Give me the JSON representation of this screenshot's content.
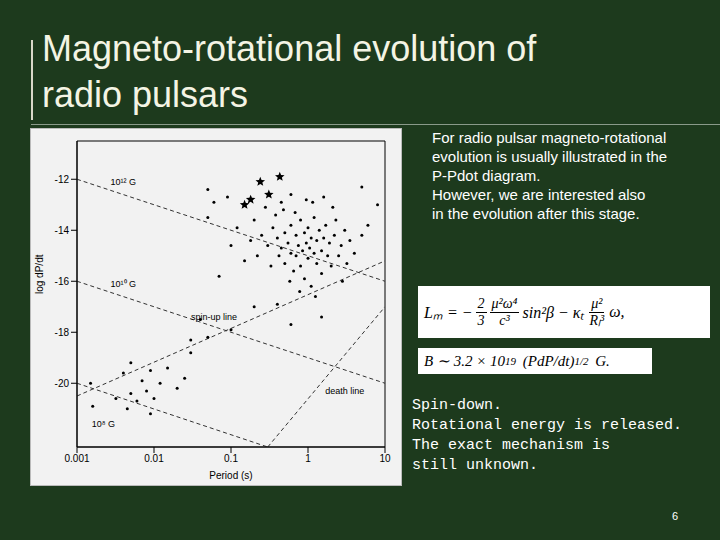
{
  "slide": {
    "title": [
      "Magneto-rotational evolution of",
      "radio pulsars"
    ],
    "intro": [
      "For radio pulsar magneto-rotational",
      "evolution is usually illustrated in the",
      "P-Pdot diagram.",
      "However, we are interested also",
      "in the evolution after this stage."
    ],
    "formula_1": [
      {
        "text": "Lₘ = −"
      },
      {
        "frac": [
          "2",
          "3"
        ]
      },
      {
        "frac": [
          "μ²ω⁴",
          "c³"
        ]
      },
      {
        "text": "sin²β − κₜ"
      },
      {
        "frac": [
          "μ²",
          "Rₗ³"
        ]
      },
      {
        "text": "ω,"
      }
    ],
    "formula_2": [
      {
        "text": "B ∼ 3.2 × 10"
      },
      {
        "sup": "19"
      },
      {
        "text": " (PdP/dt)"
      },
      {
        "sup": "1/2"
      },
      {
        "text": " G."
      }
    ],
    "note": [
      "Spin-down.",
      "Rotational energy is released.",
      "The exact mechanism is",
      "still unknown."
    ],
    "page": "6"
  },
  "chart_data": {
    "type": "scatter",
    "x_label": "Period (s)",
    "y_label": "log dP/dt",
    "log": "x",
    "grid": false,
    "xlim": [
      0.001,
      10
    ],
    "xticks": [
      0.001,
      0.01,
      0.1,
      1,
      10
    ],
    "ylim": [
      -22.5,
      -10.5
    ],
    "yticks": [
      -20,
      -18,
      -16,
      -14,
      -12
    ],
    "series": [
      {
        "marker": "circle",
        "color": "#000000",
        "x": [
          0.25,
          0.3,
          0.35,
          0.4,
          0.42,
          0.45,
          0.5,
          0.5,
          0.55,
          0.6,
          0.6,
          0.65,
          0.7,
          0.7,
          0.75,
          0.8,
          0.8,
          0.85,
          0.9,
          0.9,
          0.95,
          1.0,
          1.0,
          1.05,
          1.1,
          1.1,
          1.2,
          1.2,
          1.3,
          1.3,
          1.4,
          1.5,
          1.5,
          1.6,
          1.7,
          1.8,
          1.9,
          2.0,
          2.2,
          2.3,
          2.5,
          2.7,
          3.0,
          3.2,
          3.5,
          4.0,
          0.33,
          0.38,
          0.48,
          0.58,
          0.68,
          0.78,
          1.15,
          0.28,
          0.22,
          0.2,
          0.18,
          2.8,
          5.0,
          6.0,
          1.25,
          0.95,
          0.6,
          0.45,
          1.6,
          2.1,
          0.12,
          0.15,
          0.1,
          0.05,
          0.09,
          0.03,
          0.2,
          0.4,
          1.5,
          0.6,
          0.07,
          0.04,
          5.0,
          8.0,
          0.05,
          0.06,
          0.0015,
          0.0016,
          0.0032,
          0.004,
          0.005,
          0.005,
          0.006,
          0.007,
          0.008,
          0.009,
          0.01,
          0.012,
          0.015,
          0.02,
          0.025,
          0.03,
          0.0045,
          0.009,
          0.05,
          0.1
        ],
        "y": [
          -14.2,
          -14.6,
          -13.9,
          -14.3,
          -15.0,
          -14.7,
          -14.1,
          -15.3,
          -14.5,
          -13.8,
          -14.9,
          -15.6,
          -14.2,
          -15.0,
          -14.6,
          -13.6,
          -15.4,
          -14.8,
          -14.1,
          -15.9,
          -14.5,
          -13.9,
          -15.1,
          -14.7,
          -14.3,
          -16.2,
          -14.9,
          -13.5,
          -15.3,
          -14.4,
          -14.0,
          -14.8,
          -15.7,
          -14.3,
          -13.8,
          -15.0,
          -14.5,
          -15.4,
          -14.2,
          -13.6,
          -15.0,
          -14.6,
          -14.0,
          -15.3,
          -14.4,
          -14.9,
          -15.4,
          -13.4,
          -13.2,
          -16.0,
          -13.3,
          -16.4,
          -12.9,
          -13.1,
          -15.0,
          -13.6,
          -14.4,
          -16.0,
          -14.2,
          -13.8,
          -16.6,
          -12.8,
          -12.6,
          -12.9,
          -12.7,
          -13.1,
          -13.9,
          -15.2,
          -14.6,
          -13.5,
          -12.7,
          -18.3,
          -17.0,
          -16.9,
          -17.4,
          -17.7,
          -15.8,
          -17.5,
          -12.3,
          -13.0,
          -12.4,
          -12.9,
          -20.0,
          -20.9,
          -20.6,
          -19.6,
          -19.2,
          -20.4,
          -20.7,
          -19.9,
          -20.3,
          -19.5,
          -20.6,
          -20.0,
          -19.4,
          -20.2,
          -19.8,
          -18.8,
          -21.0,
          -21.2,
          -18.2,
          -17.9
        ]
      },
      {
        "marker": "star",
        "color": "#000000",
        "x": [
          0.15,
          0.24,
          0.31,
          0.18,
          0.43
        ],
        "y": [
          -13.0,
          -12.1,
          -12.6,
          -12.8,
          -11.9
        ]
      }
    ],
    "lines": [
      {
        "color": "#333333",
        "line_style": "dashed",
        "x": [
          0.001,
          10
        ],
        "y": [
          -12,
          -16
        ]
      },
      {
        "color": "#333333",
        "line_style": "dashed",
        "x": [
          0.001,
          10
        ],
        "y": [
          -16,
          -20
        ]
      },
      {
        "color": "#333333",
        "line_style": "dashed",
        "x": [
          0.001,
          0.3
        ],
        "y": [
          -20,
          -22.5
        ]
      },
      {
        "color": "#333333",
        "line_style": "dashed",
        "x": [
          0.3,
          10
        ],
        "y": [
          -22.5,
          -17
        ]
      },
      {
        "color": "#333333",
        "line_style": "dashed",
        "x": [
          0.001,
          10
        ],
        "y": [
          -20.5,
          -15.2
        ]
      }
    ],
    "annotations": [
      {
        "text": "10¹² G",
        "x": 0.004,
        "y": -12.1
      },
      {
        "text": "10¹⁰ G",
        "x": 0.004,
        "y": -16.1
      },
      {
        "text": "10⁸ G",
        "x": 0.0022,
        "y": -21.6
      },
      {
        "text": "death line",
        "x": 3,
        "y": -20.3
      },
      {
        "text": "spin-up line",
        "x": 0.06,
        "y": -17.4
      }
    ]
  }
}
